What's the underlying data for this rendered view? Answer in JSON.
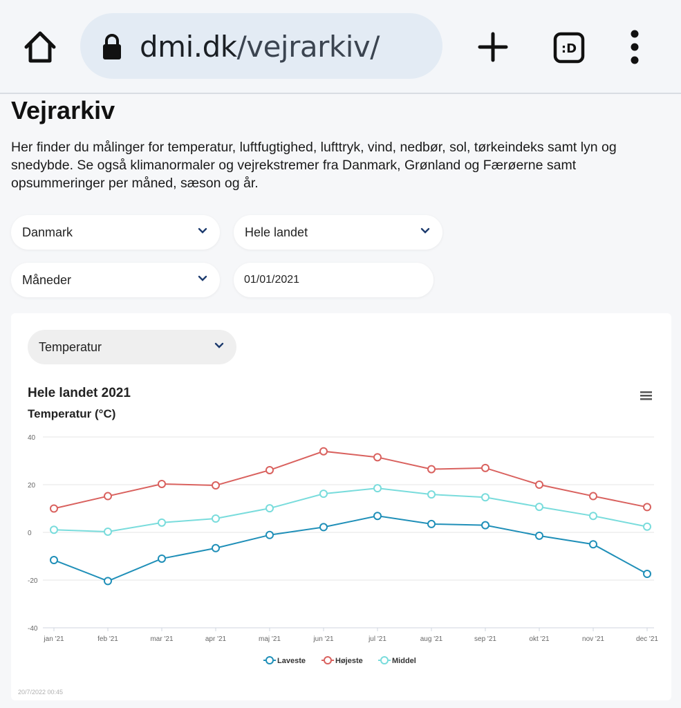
{
  "browser": {
    "url_domain": "dmi.dk",
    "url_path": "/vejrarkiv/",
    "tabs_label": ":D"
  },
  "page": {
    "title": "Vejrarkiv",
    "intro": "Her finder du målinger for temperatur, luftfugtighed, lufttryk, vind, nedbør, sol, tørkeindeks samt lyn og snedybde. Se også klimanormaler og vejrekstremer fra Danmark, Grønland og Færøerne samt opsummeringer per måned, sæson og år."
  },
  "filters": {
    "country": "Danmark",
    "region": "Hele landet",
    "period": "Måneder",
    "date": "01/01/2021",
    "parameter": "Temperatur"
  },
  "chart_meta": {
    "timestamp": "20/7/2022 00:45",
    "colors": {
      "Laveste": "#1f8fb8",
      "Højeste": "#d9615e",
      "Middel": "#79dcdc"
    }
  },
  "chart_data": {
    "type": "line",
    "title": "Hele landet 2021",
    "subtitle": "Temperatur (°C)",
    "categories": [
      "jan '21",
      "feb '21",
      "mar '21",
      "apr '21",
      "maj '21",
      "jun '21",
      "jul '21",
      "aug '21",
      "sep '21",
      "okt '21",
      "nov '21",
      "dec '21"
    ],
    "ylim": [
      -40,
      40
    ],
    "yticks": [
      40,
      20,
      0,
      -20,
      -40
    ],
    "grid": true,
    "legend_position": "bottom-center",
    "series": [
      {
        "name": "Laveste",
        "values": [
          -11.6,
          -20.4,
          -11.0,
          -6.6,
          -1.1,
          2.2,
          6.9,
          3.5,
          3.0,
          -1.4,
          -5.0,
          -17.4
        ]
      },
      {
        "name": "Højeste",
        "values": [
          10.0,
          15.2,
          20.3,
          19.7,
          26.1,
          34.0,
          31.5,
          26.5,
          27.0,
          20.0,
          15.2,
          10.6
        ]
      },
      {
        "name": "Middel",
        "values": [
          1.1,
          0.3,
          4.1,
          5.8,
          10.1,
          16.2,
          18.5,
          15.9,
          14.7,
          10.7,
          6.9,
          2.4
        ]
      }
    ]
  }
}
